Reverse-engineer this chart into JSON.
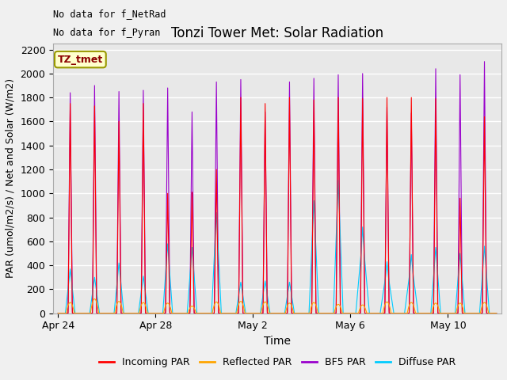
{
  "title": "Tonzi Tower Met: Solar Radiation",
  "xlabel": "Time",
  "ylabel": "PAR (umol/m2/s) / Net and Solar (W/m2)",
  "annotations": [
    "No data for f_NetRad",
    "No data for f_Pyran"
  ],
  "legend_label": "TZ_tmet",
  "legend_entries": [
    "Incoming PAR",
    "Reflected PAR",
    "BF5 PAR",
    "Diffuse PAR"
  ],
  "legend_colors": [
    "#ff0000",
    "#ffa500",
    "#9900cc",
    "#00ccff"
  ],
  "colors": {
    "incoming": "#ff0000",
    "reflected": "#ffa500",
    "bf5": "#9900cc",
    "diffuse": "#00ccff"
  },
  "ylim": [
    0,
    2250
  ],
  "yticks": [
    0,
    200,
    400,
    600,
    800,
    1000,
    1200,
    1400,
    1600,
    1800,
    2000,
    2200
  ],
  "plot_bg": "#e8e8e8",
  "grid_color": "#ffffff",
  "num_days": 18,
  "pts_per_day": 144,
  "tick_positions_days": [
    0,
    4,
    8,
    12,
    16
  ],
  "tick_labels": [
    "Apr 24",
    "Apr 28",
    "May 2",
    "May 6",
    "May 10"
  ],
  "bf5_peaks": [
    1840,
    1900,
    1850,
    1860,
    1880,
    1680,
    1930,
    1950,
    1680,
    1930,
    1960,
    1990,
    2000,
    1720,
    1670,
    2040,
    1990,
    2100
  ],
  "inc_peaks": [
    1750,
    1730,
    1600,
    1750,
    1000,
    1010,
    1200,
    1800,
    1750,
    1800,
    1780,
    1800,
    1790,
    1800,
    1800,
    1790,
    960,
    1640
  ],
  "diff_peaks": [
    370,
    300,
    420,
    310,
    580,
    550,
    840,
    260,
    270,
    260,
    940,
    1110,
    720,
    430,
    490,
    550,
    500,
    560
  ],
  "refl_peaks": [
    90,
    120,
    100,
    90,
    85,
    60,
    95,
    100,
    95,
    85,
    90,
    75,
    70,
    95,
    90,
    85,
    85,
    90
  ]
}
